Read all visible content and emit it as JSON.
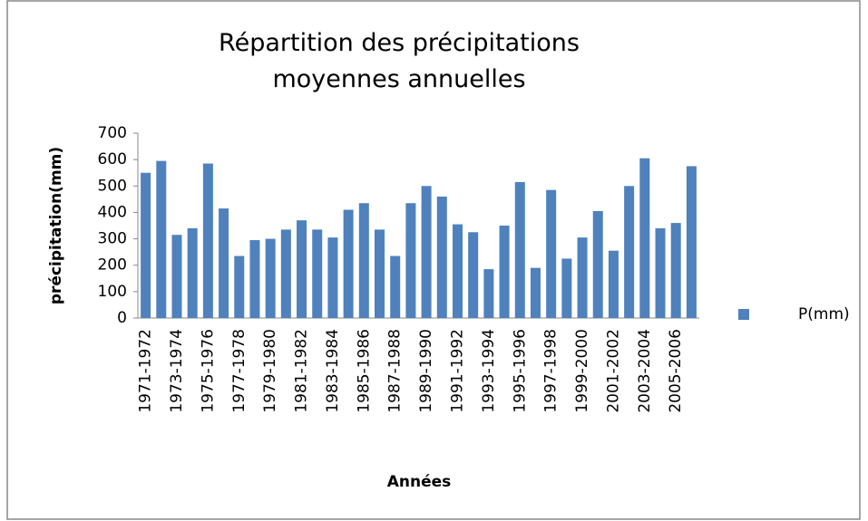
{
  "chart_data": {
    "type": "bar",
    "title": "Répartition des précipitations moyennes annuelles",
    "x_label": "Années",
    "y_label": "précipitation(mm)",
    "categories": [
      "1971-1972",
      null,
      "1973-1974",
      null,
      "1975-1976",
      null,
      "1977-1978",
      null,
      "1979-1980",
      null,
      "1981-1982",
      null,
      "1983-1984",
      null,
      "1985-1986",
      null,
      "1987-1988",
      null,
      "1989-1990",
      null,
      "1991-1992",
      null,
      "1993-1994",
      null,
      "1995-1996",
      null,
      "1997-1998",
      null,
      "1999-2000",
      null,
      "2001-2002",
      null,
      "2003-2004",
      null,
      "2005-2006",
      null
    ],
    "series": [
      {
        "name": "P(mm)",
        "color": "#4f81bd",
        "values": [
          550,
          595,
          315,
          340,
          585,
          415,
          235,
          295,
          300,
          335,
          370,
          335,
          305,
          410,
          435,
          335,
          235,
          435,
          500,
          460,
          355,
          325,
          185,
          350,
          515,
          190,
          485,
          225,
          305,
          405,
          255,
          500,
          605,
          340,
          360,
          575
        ]
      }
    ],
    "ylim": [
      0,
      700
    ],
    "yticks": [
      0,
      100,
      200,
      300,
      400,
      500,
      600,
      700
    ],
    "grid": false,
    "legend": "right"
  }
}
